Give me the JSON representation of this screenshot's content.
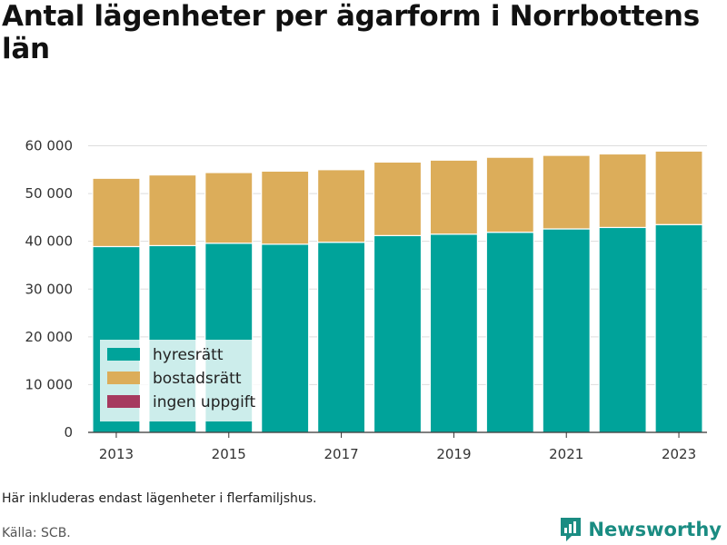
{
  "title": "Antal lägenheter per ägarform i Norrbottens län",
  "note": "Här inkluderas endast lägenheter i flerfamiljshus.",
  "source": "Källa: SCB.",
  "brand": {
    "name": "Newsworthy",
    "icon": "newsworthy-logo-icon"
  },
  "colors": {
    "hyresratt": "#00a39a",
    "bostadsratt": "#dcad5a",
    "ingen_uppgift": "#a63a5f",
    "grid": "#dddddd",
    "axis": "#333333"
  },
  "chart_data": {
    "type": "bar",
    "stacked": true,
    "categories": [
      "2013",
      "2014",
      "2015",
      "2016",
      "2017",
      "2018",
      "2019",
      "2020",
      "2021",
      "2022",
      "2023"
    ],
    "x_tick_labels": [
      "2013",
      "2015",
      "2017",
      "2019",
      "2021",
      "2023"
    ],
    "y_tick_labels": [
      "0",
      "10 000",
      "20 000",
      "30 000",
      "40 000",
      "50 000",
      "60 000"
    ],
    "ylim": [
      0,
      62000
    ],
    "y_ticks": [
      0,
      10000,
      20000,
      30000,
      40000,
      50000,
      60000
    ],
    "grid": true,
    "legend_position": "bottom-left",
    "series": [
      {
        "key": "hyresratt",
        "name": "hyresrätt",
        "values": [
          38900,
          39100,
          39600,
          39400,
          39800,
          41200,
          41500,
          41900,
          42600,
          42900,
          43500
        ]
      },
      {
        "key": "bostadsratt",
        "name": "bostadsrätt",
        "values": [
          14300,
          14800,
          14800,
          15300,
          15200,
          15400,
          15500,
          15700,
          15400,
          15400,
          15400
        ]
      },
      {
        "key": "ingen_uppgift",
        "name": "ingen uppgift",
        "values": [
          0,
          0,
          0,
          0,
          0,
          0,
          0,
          0,
          0,
          0,
          0
        ]
      }
    ]
  }
}
